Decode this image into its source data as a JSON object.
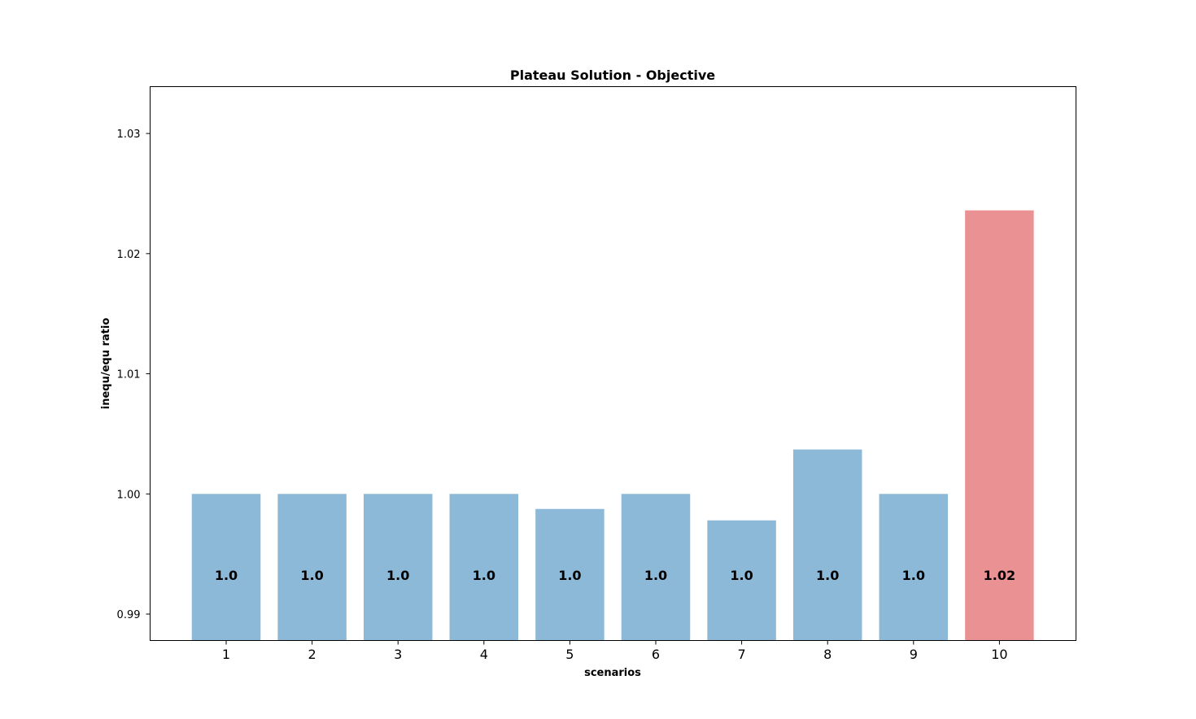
{
  "chart_data": {
    "type": "bar",
    "title": "Plateau Solution - Objective",
    "xlabel": "scenarios",
    "ylabel": "inequ/equ ratio",
    "categories": [
      "1",
      "2",
      "3",
      "4",
      "5",
      "6",
      "7",
      "8",
      "9",
      "10"
    ],
    "values": [
      1.0,
      1.0,
      1.0,
      1.0,
      0.99875,
      1.0,
      0.9978,
      1.0037,
      1.0,
      1.0236
    ],
    "bar_labels": [
      "1.0",
      "1.0",
      "1.0",
      "1.0",
      "1.0",
      "1.0",
      "1.0",
      "1.0",
      "1.0",
      "1.02"
    ],
    "bar_colors": [
      "#8db9d8",
      "#8db9d8",
      "#8db9d8",
      "#8db9d8",
      "#8db9d8",
      "#8db9d8",
      "#8db9d8",
      "#8db9d8",
      "#8db9d8",
      "#ea9194"
    ],
    "yticks": [
      0.99,
      1.0,
      1.01,
      1.02,
      1.03
    ],
    "ytick_labels": [
      "0.99",
      "1.00",
      "1.01",
      "1.02",
      "1.03"
    ],
    "ylim": [
      0.9878,
      1.0339
    ],
    "grid": false,
    "legend": "none"
  }
}
